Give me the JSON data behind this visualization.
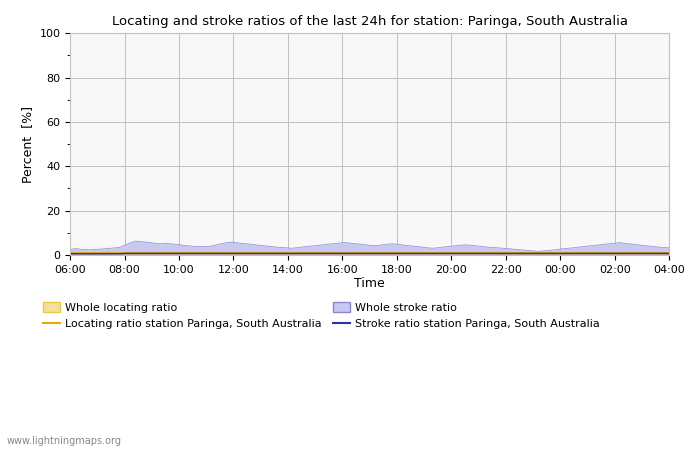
{
  "title": "Locating and stroke ratios of the last 24h for station: Paringa, South Australia",
  "xlabel": "Time",
  "ylabel": "Percent  [%]",
  "ylim": [
    0,
    100
  ],
  "yticks": [
    0,
    20,
    40,
    60,
    80,
    100
  ],
  "yticks_minor": [
    10,
    30,
    50,
    70,
    90
  ],
  "x_labels": [
    "06:00",
    "08:00",
    "10:00",
    "12:00",
    "14:00",
    "16:00",
    "18:00",
    "20:00",
    "22:00",
    "00:00",
    "02:00",
    "04:00"
  ],
  "background_color": "#ffffff",
  "plot_bg_color": "#f0f0f0",
  "watermark": "www.lightningmaps.org",
  "whole_locating_fill_color": "#f5dfa0",
  "whole_locating_line_color": "#e8c840",
  "whole_stroke_fill_color": "#c8c8f0",
  "whole_stroke_line_color": "#8888cc",
  "station_locating_color": "#e8a800",
  "station_stroke_color": "#3030a0",
  "legend_labels": [
    "Whole locating ratio",
    "Locating ratio station Paringa, South Australia",
    "Whole stroke ratio",
    "Stroke ratio station Paringa, South Australia"
  ],
  "num_points": 120,
  "whole_stroke_data": [
    2.5,
    2.8,
    2.6,
    2.4,
    2.3,
    2.5,
    2.6,
    2.8,
    3.0,
    3.2,
    3.5,
    4.5,
    5.5,
    6.2,
    6.0,
    5.8,
    5.5,
    5.2,
    5.0,
    5.3,
    5.0,
    4.8,
    4.5,
    4.2,
    4.0,
    3.8,
    3.7,
    3.8,
    4.0,
    4.5,
    5.0,
    5.5,
    5.8,
    5.5,
    5.2,
    5.0,
    4.8,
    4.5,
    4.2,
    4.0,
    3.8,
    3.5,
    3.3,
    3.2,
    3.0,
    3.2,
    3.5,
    3.8,
    4.0,
    4.2,
    4.5,
    4.8,
    5.0,
    5.2,
    5.5,
    5.5,
    5.2,
    5.0,
    4.8,
    4.5,
    4.2,
    4.2,
    4.5,
    4.8,
    5.0,
    4.8,
    4.5,
    4.2,
    4.0,
    3.8,
    3.5,
    3.2,
    3.0,
    3.2,
    3.5,
    3.8,
    4.0,
    4.2,
    4.5,
    4.5,
    4.2,
    4.0,
    3.8,
    3.5,
    3.3,
    3.2,
    3.0,
    2.8,
    2.6,
    2.4,
    2.2,
    2.0,
    1.8,
    1.6,
    1.8,
    2.0,
    2.2,
    2.5,
    2.8,
    3.0,
    3.2,
    3.5,
    3.8,
    4.0,
    4.2,
    4.5,
    4.8,
    5.0,
    5.2,
    5.5,
    5.3,
    5.0,
    4.8,
    4.5,
    4.2,
    4.0,
    3.8,
    3.5,
    3.3,
    3.2
  ],
  "whole_locating_data": [
    1.0,
    1.0,
    1.0,
    1.0,
    1.0,
    1.0,
    1.0,
    1.0,
    1.0,
    1.0,
    1.0,
    1.2,
    1.2,
    1.2,
    1.2,
    1.2,
    1.2,
    1.2,
    1.2,
    1.2,
    1.2,
    1.2,
    1.2,
    1.2,
    1.2,
    1.2,
    1.2,
    1.2,
    1.2,
    1.2,
    1.2,
    1.2,
    1.2,
    1.2,
    1.2,
    1.2,
    1.2,
    1.2,
    1.2,
    1.2,
    1.2,
    1.2,
    1.2,
    1.2,
    1.2,
    1.2,
    1.2,
    1.2,
    1.2,
    1.2,
    1.2,
    1.2,
    1.2,
    1.2,
    1.2,
    1.2,
    1.2,
    1.2,
    1.2,
    1.2,
    1.2,
    1.2,
    1.2,
    1.2,
    1.2,
    1.2,
    1.2,
    1.2,
    1.2,
    1.2,
    1.2,
    1.2,
    1.2,
    1.2,
    1.2,
    1.2,
    1.2,
    1.2,
    1.2,
    1.2,
    1.2,
    1.2,
    1.2,
    1.2,
    1.2,
    1.2,
    1.2,
    1.2,
    1.2,
    1.2,
    1.2,
    1.2,
    1.2,
    1.2,
    1.2,
    1.2,
    1.2,
    1.2,
    1.2,
    1.2,
    1.2,
    1.2,
    1.2,
    1.2,
    1.2,
    1.2,
    1.2,
    1.2,
    1.2,
    1.2,
    1.2,
    1.2,
    1.2,
    1.2,
    1.2,
    1.2,
    1.2,
    1.2,
    1.2,
    1.2
  ],
  "station_locating_line": [
    0.8,
    0.8,
    0.8,
    0.8,
    0.8,
    0.8,
    0.8,
    0.8,
    0.8,
    0.8,
    0.8,
    0.9,
    0.9,
    0.9,
    0.9,
    0.9,
    0.9,
    0.9,
    0.9,
    0.9,
    0.9,
    0.9,
    0.9,
    0.9,
    0.9,
    0.9,
    0.9,
    0.9,
    0.9,
    0.9,
    0.9,
    0.9,
    0.9,
    0.9,
    0.9,
    0.9,
    0.9,
    0.9,
    0.9,
    0.9,
    0.9,
    0.9,
    0.9,
    0.9,
    0.9,
    0.9,
    0.9,
    0.9,
    0.9,
    0.9,
    0.9,
    0.9,
    0.9,
    0.9,
    0.9,
    0.9,
    0.9,
    0.9,
    0.9,
    0.9,
    0.9,
    0.9,
    0.9,
    0.9,
    0.9,
    0.9,
    0.9,
    0.9,
    0.9,
    0.9,
    0.9,
    0.9,
    0.9,
    0.9,
    0.9,
    0.9,
    0.9,
    0.9,
    0.9,
    0.9,
    0.9,
    0.9,
    0.9,
    0.9,
    0.9,
    0.9,
    0.9,
    0.9,
    0.9,
    0.9,
    0.9,
    0.9,
    0.9,
    0.9,
    0.9,
    0.9,
    0.9,
    0.9,
    0.9,
    0.9,
    0.9,
    0.9,
    0.9,
    0.9,
    0.9,
    0.9,
    0.9,
    0.9,
    0.9,
    0.9,
    0.9,
    0.9,
    0.9,
    0.9,
    0.9,
    0.9,
    0.9,
    0.9,
    0.9,
    0.9
  ],
  "station_stroke_line": [
    0.5,
    0.5,
    0.5,
    0.5,
    0.5,
    0.5,
    0.5,
    0.5,
    0.5,
    0.5,
    0.5,
    0.6,
    0.6,
    0.6,
    0.6,
    0.6,
    0.6,
    0.6,
    0.6,
    0.6,
    0.6,
    0.6,
    0.6,
    0.6,
    0.6,
    0.6,
    0.6,
    0.6,
    0.6,
    0.6,
    0.6,
    0.6,
    0.6,
    0.6,
    0.6,
    0.6,
    0.6,
    0.6,
    0.6,
    0.6,
    0.6,
    0.6,
    0.6,
    0.6,
    0.6,
    0.6,
    0.6,
    0.6,
    0.6,
    0.6,
    0.6,
    0.6,
    0.6,
    0.6,
    0.6,
    0.6,
    0.6,
    0.6,
    0.6,
    0.6,
    0.6,
    0.6,
    0.6,
    0.6,
    0.6,
    0.6,
    0.6,
    0.6,
    0.6,
    0.6,
    0.6,
    0.6,
    0.6,
    0.6,
    0.6,
    0.6,
    0.6,
    0.6,
    0.6,
    0.6,
    0.6,
    0.6,
    0.6,
    0.6,
    0.6,
    0.6,
    0.6,
    0.6,
    0.6,
    0.6,
    0.6,
    0.6,
    0.6,
    0.6,
    0.6,
    0.6,
    0.6,
    0.6,
    0.6,
    0.6,
    0.6,
    0.6,
    0.6,
    0.6,
    0.6,
    0.6,
    0.6,
    0.6,
    0.6,
    0.6,
    0.6,
    0.6,
    0.6,
    0.6,
    0.6,
    0.6,
    0.6,
    0.6,
    0.6,
    0.6
  ]
}
